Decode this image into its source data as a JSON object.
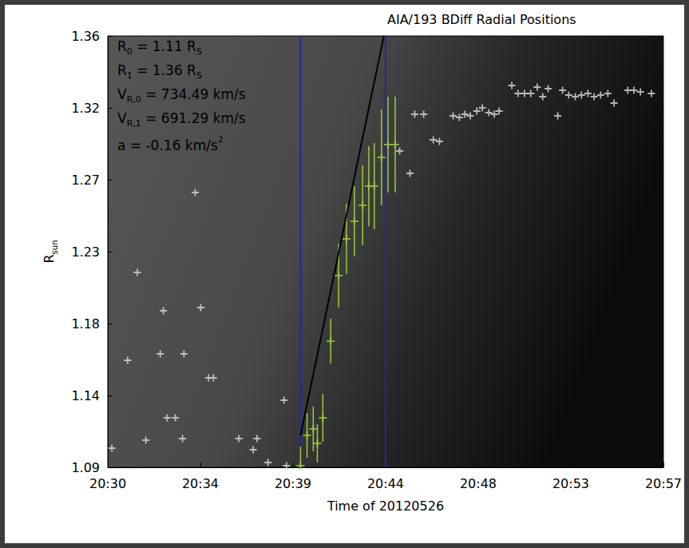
{
  "chart_data": {
    "type": "scatter",
    "title": "AIA/193 BDiff Radial Positions",
    "xlabel": "Time of 20120526",
    "ylabel": [
      {
        "text": "R"
      },
      {
        "sub": "sun"
      }
    ],
    "xlim": [
      "20:30:00",
      "20:57:00"
    ],
    "xticks": [
      {
        "value": "20:30:00",
        "label": "20:30"
      },
      {
        "value": "20:34:30",
        "label": "20:34"
      },
      {
        "value": "20:39:00",
        "label": "20:39"
      },
      {
        "value": "20:43:30",
        "label": "20:44"
      },
      {
        "value": "20:48:00",
        "label": "20:48"
      },
      {
        "value": "20:52:30",
        "label": "20:53"
      },
      {
        "value": "20:57:00",
        "label": "20:57"
      }
    ],
    "ylim": [
      1.09,
      1.36
    ],
    "yticks": [
      1.09,
      {
        "value": 1.135,
        "label": "1.14"
      },
      1.18,
      {
        "value": 1.225,
        "label": "1.23"
      },
      1.27,
      {
        "value": 1.315,
        "label": "1.32"
      },
      1.36
    ],
    "grid": false,
    "annotations": [
      [
        {
          "text": "R"
        },
        {
          "sub": "0"
        },
        {
          "text": " = 1.11 R"
        },
        {
          "sub": "S"
        }
      ],
      [
        {
          "text": "R"
        },
        {
          "sub": "1"
        },
        {
          "text": " = 1.36 R"
        },
        {
          "sub": "S"
        }
      ],
      [
        {
          "text": "V"
        },
        {
          "sub": "R,0"
        },
        {
          "text": " = 734.49 km/s"
        }
      ],
      [
        {
          "text": "V"
        },
        {
          "sub": "R,1"
        },
        {
          "text": " = 691.29 km/s"
        }
      ],
      [
        {
          "text": "a = -0.16 km/s"
        },
        {
          "sup": "2"
        }
      ]
    ],
    "series": [
      {
        "type": "scatter",
        "marker": "plus",
        "color": "#dcdcdc",
        "x": [
          "20:30:12",
          "20:31:26",
          "20:30:58",
          "20:31:51",
          "20:32:33",
          "20:32:42",
          "20:32:53",
          "20:33:17",
          "20:33:38",
          "20:33:42",
          "20:34:15",
          "20:34:31",
          "20:34:54",
          "20:35:08",
          "20:36:22",
          "20:37:04",
          "20:37:15",
          "20:37:47",
          "20:38:34",
          "20:38:41",
          "20:44:11",
          "20:44:41",
          "20:44:55",
          "20:45:21",
          "20:45:49",
          "20:46:07",
          "20:46:47",
          "20:47:05",
          "20:47:21",
          "20:47:37",
          "20:47:56",
          "20:48:12",
          "20:48:31",
          "20:48:47",
          "20:49:01",
          "20:49:38",
          "20:49:56",
          "20:50:15",
          "20:50:33",
          "20:50:52",
          "20:51:08",
          "20:51:24",
          "20:51:52",
          "20:52:06",
          "20:52:24",
          "20:52:43",
          "20:53:01",
          "20:53:20",
          "20:53:38",
          "20:53:57",
          "20:54:18",
          "20:54:36",
          "20:55:16",
          "20:55:34",
          "20:55:53",
          "20:56:25"
        ],
        "values": [
          1.102,
          1.212,
          1.157,
          1.107,
          1.161,
          1.188,
          1.121,
          1.121,
          1.108,
          1.161,
          1.262,
          1.19,
          1.146,
          1.146,
          1.108,
          1.101,
          1.108,
          1.093,
          1.132,
          1.091,
          1.288,
          1.274,
          1.311,
          1.311,
          1.295,
          1.294,
          1.31,
          1.309,
          1.311,
          1.31,
          1.313,
          1.315,
          1.312,
          1.311,
          1.313,
          1.329,
          1.324,
          1.324,
          1.324,
          1.328,
          1.322,
          1.327,
          1.31,
          1.326,
          1.323,
          1.322,
          1.323,
          1.324,
          1.322,
          1.323,
          1.324,
          1.318,
          1.326,
          1.326,
          1.325,
          1.324
        ]
      },
      {
        "type": "scatter",
        "marker": "plus",
        "color": "#9ccc3c",
        "x": [
          "20:39:22",
          "20:39:41",
          "20:39:59",
          "20:40:11",
          "20:40:27",
          "20:40:50",
          "20:41:13",
          "20:41:36",
          "20:41:59",
          "20:42:23",
          "20:42:41",
          "20:42:57",
          "20:43:18",
          "20:43:37",
          "20:43:58"
        ],
        "values": [
          1.091,
          1.11,
          1.114,
          1.105,
          1.121,
          1.169,
          1.21,
          1.233,
          1.244,
          1.254,
          1.266,
          1.266,
          1.284,
          1.292,
          1.292
        ],
        "yerr": [
          0.012,
          0.014,
          0.014,
          0.012,
          0.015,
          0.014,
          0.02,
          0.022,
          0.022,
          0.025,
          0.025,
          0.027,
          0.03,
          0.03,
          0.03
        ]
      },
      {
        "type": "line",
        "color": "#000000",
        "x": [
          "20:39:22",
          "20:43:25"
        ],
        "values": [
          1.11,
          1.36
        ]
      },
      {
        "type": "vline",
        "color": "#1f2a9c",
        "x": [
          "20:39:22",
          "20:43:30"
        ]
      }
    ]
  }
}
